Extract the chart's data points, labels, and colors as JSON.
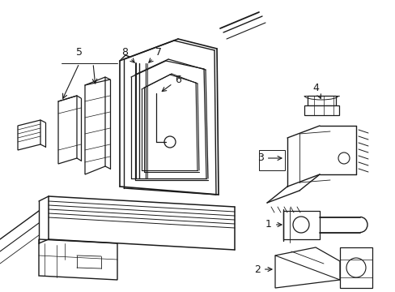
{
  "bg_color": "#ffffff",
  "line_color": "#1a1a1a",
  "figsize": [
    4.89,
    3.6
  ],
  "dpi": 100,
  "lw": 0.75
}
